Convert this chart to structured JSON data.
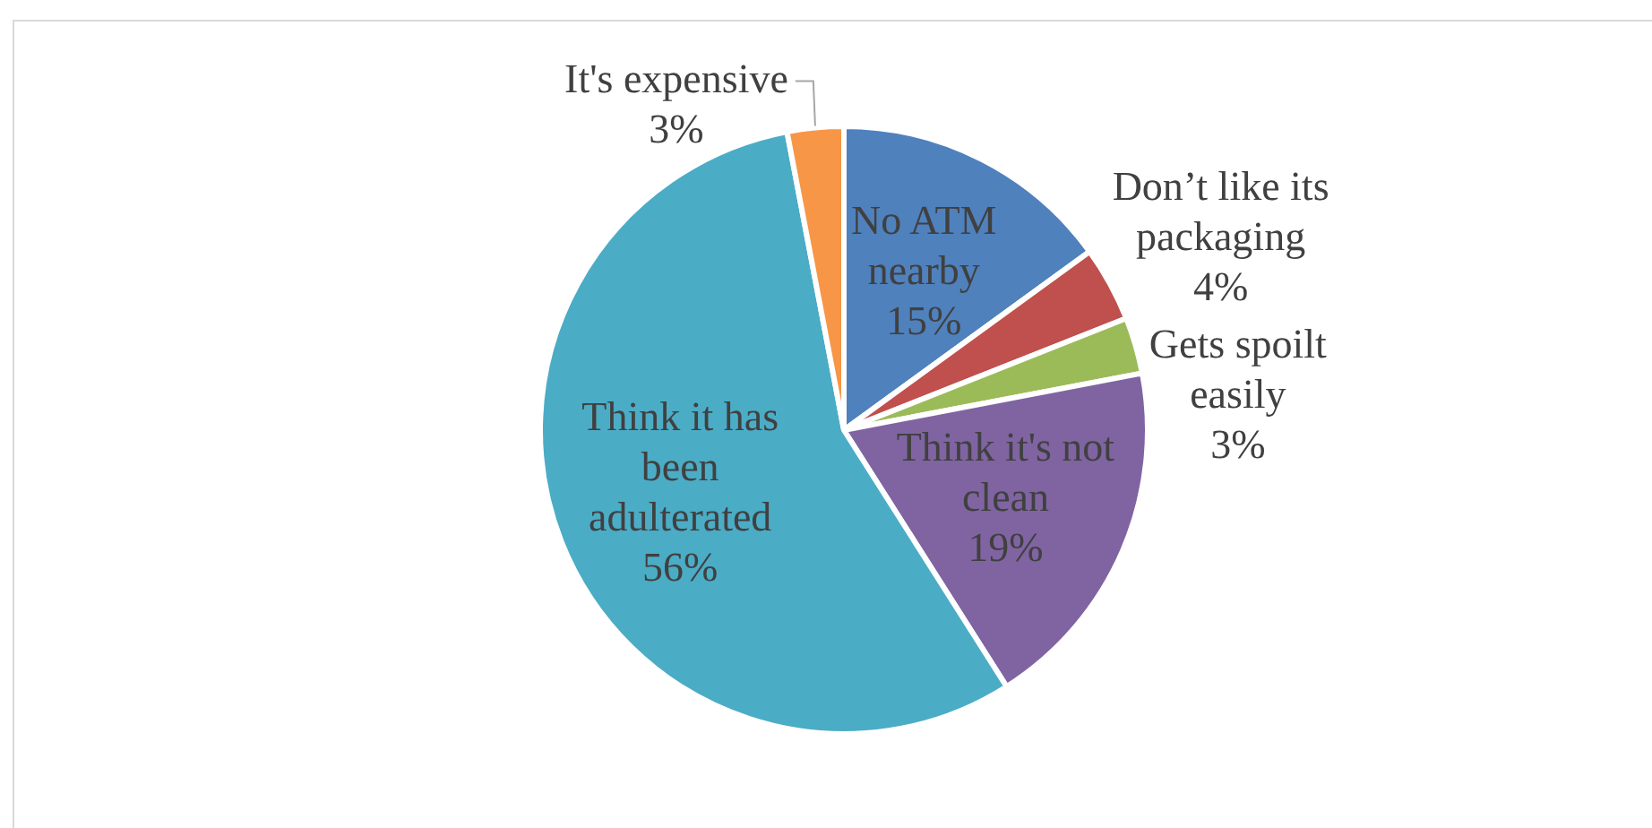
{
  "chart_data": {
    "type": "pie",
    "categories": [
      "No ATM nearby",
      "Don’t like its packaging",
      "Gets spoilt easily",
      "Think it's not clean",
      "Think it has been adulterated",
      "It's expensive"
    ],
    "values": [
      15,
      4,
      3,
      19,
      56,
      3
    ],
    "colors": [
      "#4f81bd",
      "#c0504d",
      "#9bbb59",
      "#8064a2",
      "#4bacc6",
      "#f79646"
    ],
    "value_labels": [
      "15%",
      "4%",
      "3%",
      "19%",
      "56%",
      "3%"
    ],
    "legend": false
  }
}
